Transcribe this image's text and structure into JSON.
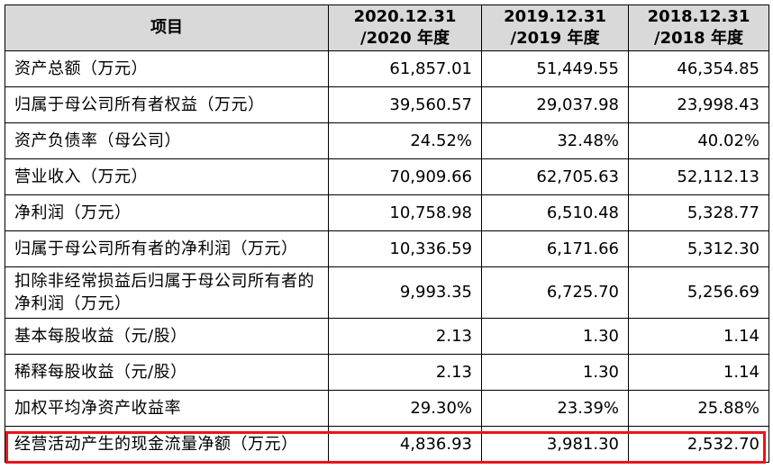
{
  "table": {
    "headers": [
      "项目",
      "2020.12.31\n/2020 年度",
      "2019.12.31\n/2019 年度",
      "2018.12.31\n/2018 年度"
    ],
    "header_item": "项目",
    "periods": [
      {
        "date": "2020.12.31",
        "year": "/2020 年度"
      },
      {
        "date": "2019.12.31",
        "year": "/2019 年度"
      },
      {
        "date": "2018.12.31",
        "year": "/2018 年度"
      }
    ],
    "rows": [
      {
        "label": "资产总额（万元）",
        "values": [
          "61,857.01",
          "51,449.55",
          "46,354.85"
        ]
      },
      {
        "label": "归属于母公司所有者权益（万元）",
        "values": [
          "39,560.57",
          "29,037.98",
          "23,998.43"
        ]
      },
      {
        "label": "资产负债率（母公司）",
        "values": [
          "24.52%",
          "32.48%",
          "40.02%"
        ]
      },
      {
        "label": "营业收入（万元）",
        "values": [
          "70,909.66",
          "62,705.63",
          "52,112.13"
        ]
      },
      {
        "label": "净利润（万元）",
        "values": [
          "10,758.98",
          "6,510.48",
          "5,328.77"
        ]
      },
      {
        "label": "归属于母公司所有者的净利润（万元）",
        "values": [
          "10,336.59",
          "6,171.66",
          "5,312.30"
        ]
      },
      {
        "label": "扣除非经常损益后归属于母公司所有者的净利润（万元）",
        "values": [
          "9,993.35",
          "6,725.70",
          "5,256.69"
        ]
      },
      {
        "label": "基本每股收益（元/股）",
        "values": [
          "2.13",
          "1.30",
          "1.14"
        ]
      },
      {
        "label": "稀释每股收益（元/股）",
        "values": [
          "2.13",
          "1.30",
          "1.14"
        ]
      },
      {
        "label": "加权平均净资产收益率",
        "values": [
          "29.30%",
          "23.39%",
          "25.88%"
        ]
      },
      {
        "label": "经营活动产生的现金流量净额（万元）",
        "values": [
          "4,836.93",
          "3,981.30",
          "2,532.70"
        ]
      }
    ]
  },
  "highlight": {
    "row_label": "经营活动产生的现金流量净额（万元）",
    "color": "#e8141c"
  },
  "colors": {
    "header_bg": "#d9d9d9",
    "border": "#000000",
    "highlight": "#e8141c"
  }
}
